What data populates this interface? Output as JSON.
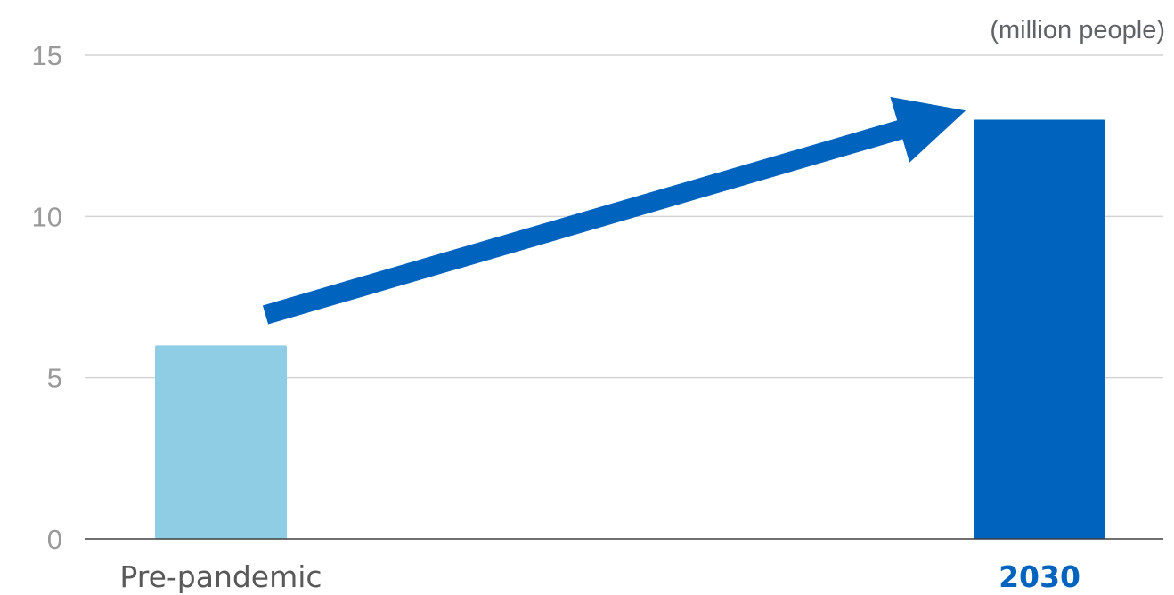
{
  "chart_data": {
    "type": "bar",
    "unit_label": "(million people)",
    "categories": [
      "Pre-pandemic",
      "2030"
    ],
    "values": [
      6,
      13
    ],
    "bar_colors": [
      "#8ecde3",
      "#0063bd"
    ],
    "category_label_colors": [
      "#595959",
      "#0063bd"
    ],
    "category_label_bold": [
      false,
      true
    ],
    "ylim": [
      0,
      15
    ],
    "yticks": [
      "0",
      "5",
      "10",
      "15"
    ],
    "grid": true,
    "arrow": {
      "from_category": "Pre-pandemic",
      "to_category": "2030",
      "color": "#0063bd"
    },
    "xlabel": "",
    "ylabel": "",
    "title": ""
  }
}
